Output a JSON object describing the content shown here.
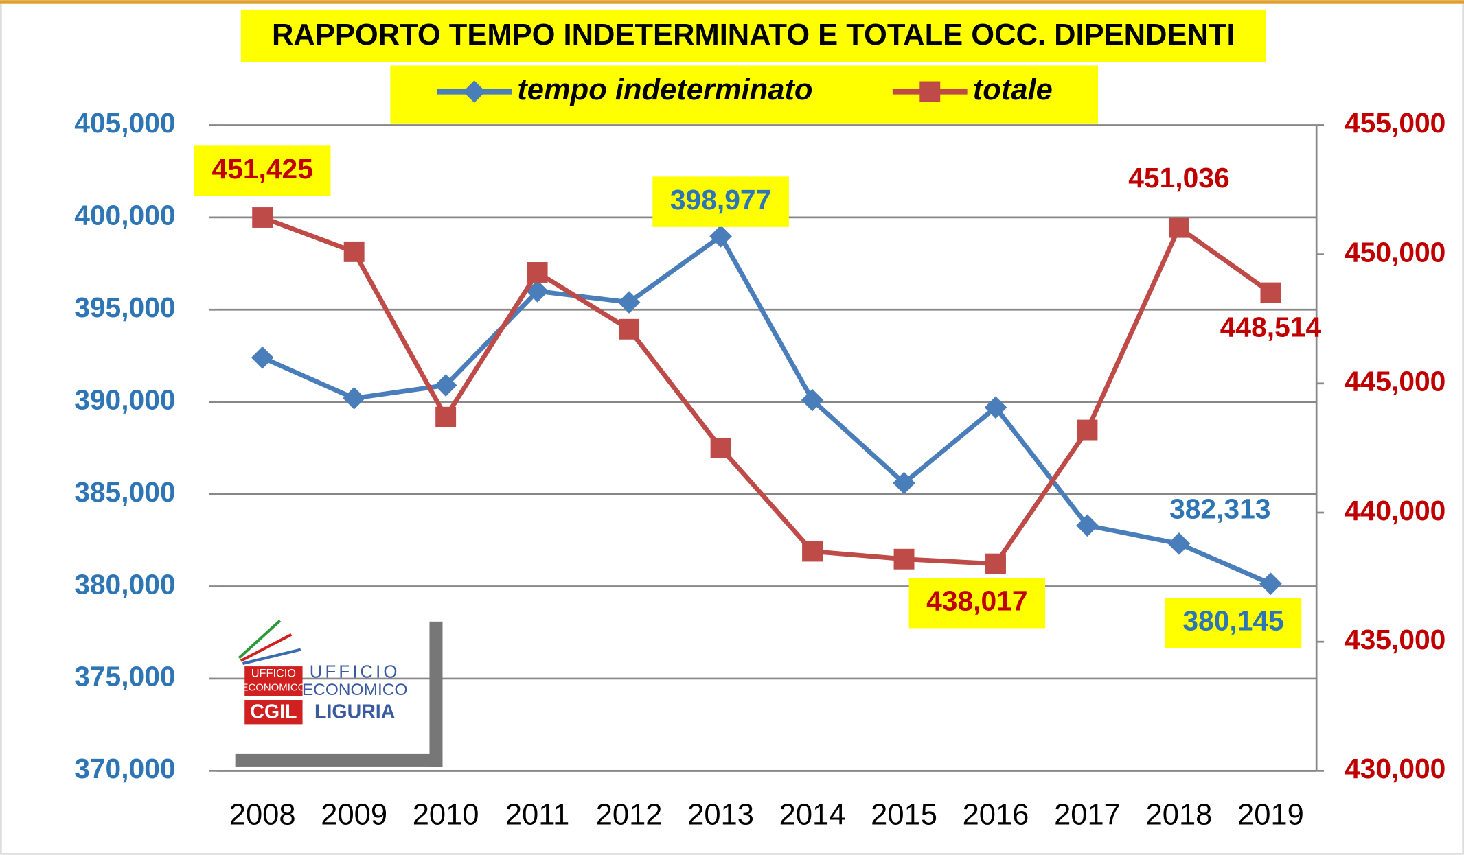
{
  "chart_data": {
    "type": "line",
    "title": "RAPPORTO TEMPO INDETERMINATO E TOTALE OCC. DIPENDENTI",
    "categories": [
      "2008",
      "2009",
      "2010",
      "2011",
      "2012",
      "2013",
      "2014",
      "2015",
      "2016",
      "2017",
      "2018",
      "2019"
    ],
    "series": [
      {
        "name": "tempo indeterminato",
        "color": "#4a7ebb",
        "axis": "y",
        "values": [
          392400,
          390200,
          390900,
          396000,
          395400,
          398977,
          390100,
          385600,
          389700,
          383300,
          382313,
          380145
        ],
        "value_labels": [
          null,
          null,
          null,
          null,
          null,
          "398,977",
          null,
          null,
          null,
          null,
          "382,313",
          "380,145"
        ]
      },
      {
        "name": "totale",
        "color": "#be4b48",
        "axis": "y2",
        "values": [
          451425,
          450100,
          443700,
          449300,
          447100,
          442500,
          438500,
          438200,
          438017,
          443200,
          451036,
          448514
        ],
        "value_labels": [
          "451,425",
          null,
          null,
          null,
          null,
          null,
          null,
          null,
          "438,017",
          null,
          "451,036",
          "448,514"
        ]
      }
    ],
    "ylim": [
      370000,
      405000
    ],
    "yticks": [
      {
        "value": 370000,
        "label": "370,000"
      },
      {
        "value": 375000,
        "label": "375,000"
      },
      {
        "value": 380000,
        "label": "380,000"
      },
      {
        "value": 385000,
        "label": "385,000"
      },
      {
        "value": 390000,
        "label": "390,000"
      },
      {
        "value": 395000,
        "label": "395,000"
      },
      {
        "value": 400000,
        "label": "400,000"
      },
      {
        "value": 405000,
        "label": "405,000"
      }
    ],
    "y2lim": [
      430000,
      455000
    ],
    "y2ticks": [
      {
        "value": 430000,
        "label": "430,000"
      },
      {
        "value": 435000,
        "label": "435,000"
      },
      {
        "value": 440000,
        "label": "440,000"
      },
      {
        "value": 445000,
        "label": "445,000"
      },
      {
        "value": 450000,
        "label": "450,000"
      },
      {
        "value": 455000,
        "label": "455,000"
      }
    ],
    "grid": true,
    "legend": "top"
  },
  "logo": {
    "box": [
      "UFFICIO",
      "ECONOMICO"
    ],
    "name": [
      "UFFICIO",
      "ECONOMICO"
    ],
    "org": "CGIL",
    "region": "LIGURIA"
  }
}
